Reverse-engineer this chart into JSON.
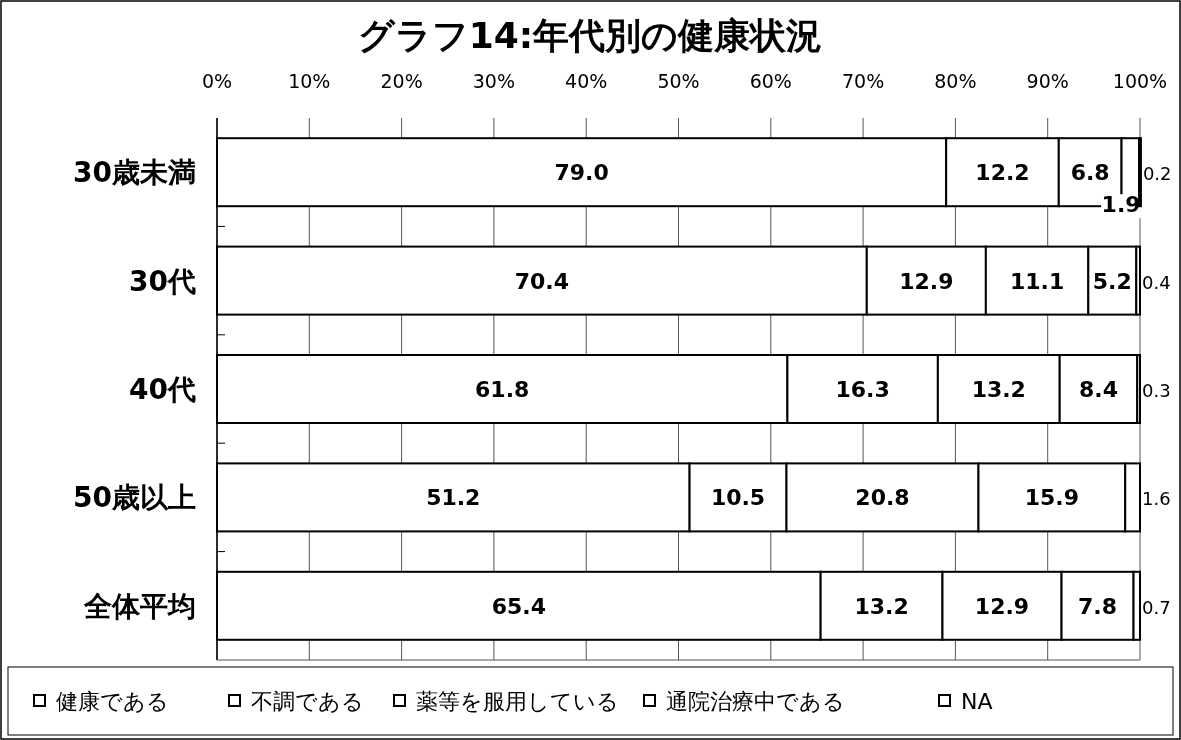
{
  "chart_data": {
    "type": "bar",
    "orientation": "horizontal",
    "stacked": true,
    "title": "グラフ14:年代別の健康状況",
    "categories": [
      "30歳未満",
      "30代",
      "40代",
      "50歳以上",
      "全体平均"
    ],
    "series": [
      {
        "name": "健康である",
        "color": "#ffffff",
        "values": [
          79.0,
          70.4,
          61.8,
          51.2,
          65.4
        ],
        "value_labels": [
          "79.0",
          "70.4",
          "61.8",
          "51.2",
          "65.4"
        ]
      },
      {
        "name": "不調である",
        "color": "#ffffff",
        "values": [
          12.2,
          12.9,
          16.3,
          10.5,
          13.2
        ],
        "value_labels": [
          "12.2",
          "12.9",
          "16.3",
          "10.5",
          "13.2"
        ]
      },
      {
        "name": "薬等を服用している",
        "color": "#ffffff",
        "values": [
          6.8,
          11.1,
          13.2,
          20.8,
          12.9
        ],
        "value_labels": [
          "6.8",
          "11.1",
          "13.2",
          "20.8",
          "12.9"
        ]
      },
      {
        "name": "通院治療中である",
        "color": "#ffffff",
        "values": [
          1.9,
          5.2,
          8.4,
          15.9,
          7.8
        ],
        "value_labels": [
          "1.9",
          "5.2",
          "8.4",
          "15.9",
          "7.8"
        ]
      },
      {
        "name": "NA",
        "color": "#ffffff",
        "values": [
          0.2,
          0.4,
          0.3,
          1.6,
          0.7
        ],
        "value_labels": [
          "0.2",
          "0.4",
          "0.3",
          "1.6",
          "0.7"
        ]
      }
    ],
    "xlim": [
      0,
      100
    ],
    "xticks": [
      {
        "value": 0,
        "label": "0%"
      },
      {
        "value": 10,
        "label": "10%"
      },
      {
        "value": 20,
        "label": "20%"
      },
      {
        "value": 30,
        "label": "30%"
      },
      {
        "value": 40,
        "label": "40%"
      },
      {
        "value": 50,
        "label": "50%"
      },
      {
        "value": 60,
        "label": "60%"
      },
      {
        "value": 70,
        "label": "70%"
      },
      {
        "value": 80,
        "label": "80%"
      },
      {
        "value": 90,
        "label": "90%"
      },
      {
        "value": 100,
        "label": "100%"
      }
    ],
    "grid": "x",
    "legend": "bottom"
  }
}
